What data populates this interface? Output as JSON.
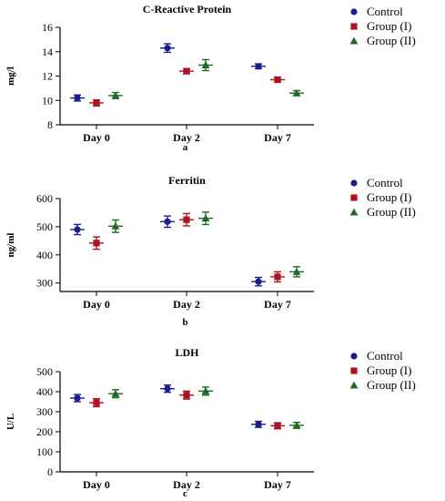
{
  "chart_data": [
    {
      "type": "scatter",
      "title": "C-Reactive Protein",
      "ylabel": "mg/l",
      "panel_label": "a",
      "categories": [
        "Day 0",
        "Day 2",
        "Day 7"
      ],
      "ylim": [
        8,
        16
      ],
      "yticks": [
        8,
        10,
        12,
        14,
        16
      ],
      "series": [
        {
          "name": "Control",
          "values": [
            10.2,
            14.3,
            12.8
          ],
          "err": [
            0.25,
            0.35,
            0.2
          ]
        },
        {
          "name": "Group (I)",
          "values": [
            9.8,
            12.4,
            11.7
          ],
          "err": [
            0.25,
            0.2,
            0.2
          ]
        },
        {
          "name": "Group (II)",
          "values": [
            10.4,
            12.9,
            10.6
          ],
          "err": [
            0.25,
            0.45,
            0.2
          ]
        }
      ]
    },
    {
      "type": "scatter",
      "title": "Ferritin",
      "ylabel": "ng/ml",
      "panel_label": "b",
      "categories": [
        "Day 0",
        "Day 2",
        "Day 7"
      ],
      "ylim": [
        270,
        600
      ],
      "yticks": [
        300,
        400,
        500,
        600
      ],
      "series": [
        {
          "name": "Control",
          "values": [
            490,
            518,
            305
          ],
          "err": [
            18,
            20,
            15
          ]
        },
        {
          "name": "Group (I)",
          "values": [
            442,
            525,
            322
          ],
          "err": [
            22,
            22,
            18
          ]
        },
        {
          "name": "Group (II)",
          "values": [
            502,
            530,
            340
          ],
          "err": [
            22,
            22,
            18
          ]
        }
      ]
    },
    {
      "type": "scatter",
      "title": "LDH",
      "ylabel": "U/L",
      "panel_label": "c",
      "categories": [
        "Day 0",
        "Day 2",
        "Day 7"
      ],
      "ylim": [
        0,
        500
      ],
      "yticks": [
        0,
        100,
        200,
        300,
        400,
        500
      ],
      "series": [
        {
          "name": "Control",
          "values": [
            368,
            415,
            237
          ],
          "err": [
            18,
            18,
            15
          ]
        },
        {
          "name": "Group (I)",
          "values": [
            345,
            383,
            230
          ],
          "err": [
            20,
            20,
            15
          ]
        },
        {
          "name": "Group (II)",
          "values": [
            390,
            403,
            232
          ],
          "err": [
            20,
            20,
            15
          ]
        }
      ]
    }
  ],
  "colors": {
    "Control": "#1c1c8a",
    "Group (I)": "#b0121f",
    "Group (II)": "#1d6b22"
  }
}
